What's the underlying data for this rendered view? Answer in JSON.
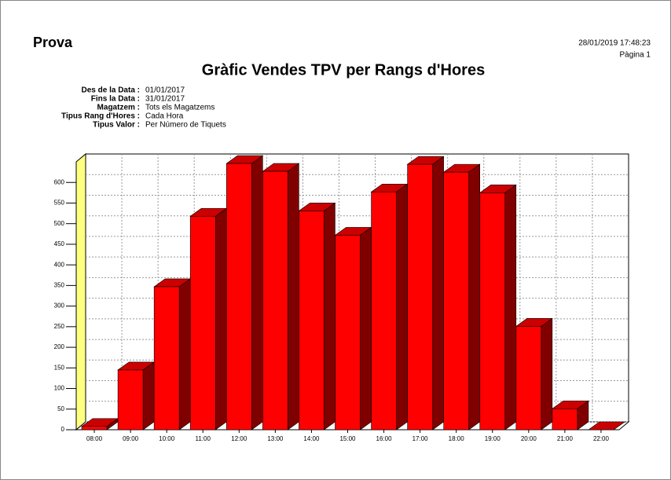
{
  "header": {
    "title": "Prova",
    "datetime": "28/01/2019 17:48:23",
    "page": "Pàgina 1"
  },
  "filters": [
    {
      "label": "Des de la Data :",
      "value": "01/01/2017"
    },
    {
      "label": "Fins la Data :",
      "value": "31/01/2017"
    },
    {
      "label": "Magatzem :",
      "value": "Tots els Magatzems"
    },
    {
      "label": "Tipus Rang d'Hores :",
      "value": "Cada Hora"
    },
    {
      "label": "Tipus Valor :",
      "value": "Per Número de Tiquets"
    }
  ],
  "chart_data": {
    "type": "bar3d",
    "title": "Gràfic Vendes TPV per Rangs d'Hores",
    "categories": [
      "08:00",
      "09:00",
      "10:00",
      "11:00",
      "12:00",
      "13:00",
      "14:00",
      "15:00",
      "16:00",
      "17:00",
      "18:00",
      "19:00",
      "20:00",
      "21:00",
      "22:00"
    ],
    "values": [
      8,
      145,
      347,
      518,
      646,
      627,
      531,
      472,
      577,
      644,
      625,
      575,
      251,
      51,
      0
    ],
    "color": "#ff0000",
    "ylim": [
      0,
      650
    ],
    "yticks": [
      0,
      50,
      100,
      150,
      200,
      250,
      300,
      350,
      400,
      450,
      500,
      550,
      600
    ],
    "grid": true
  }
}
